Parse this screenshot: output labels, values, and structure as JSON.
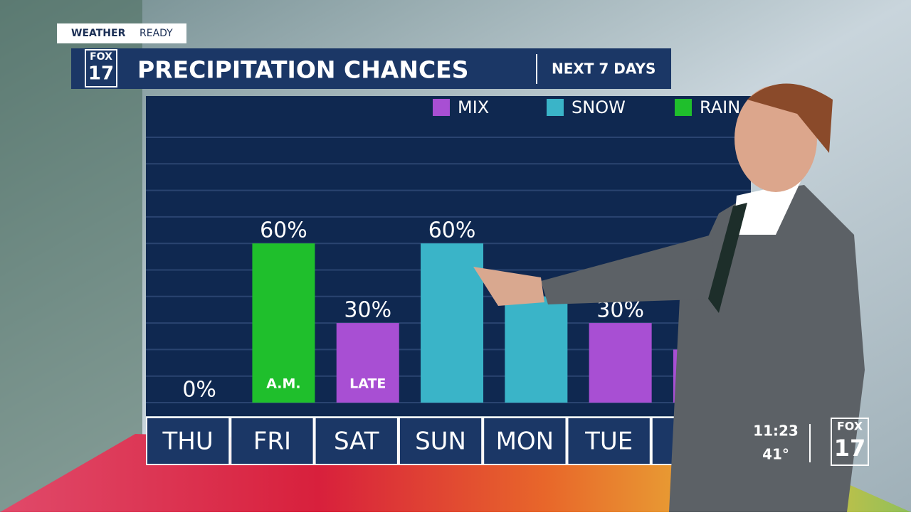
{
  "header": {
    "brand": "WEATHER",
    "status": "READY",
    "logo_top": "FOX",
    "logo_num": "17",
    "title": "PRECIPITATION CHANCES",
    "subtitle": "NEXT 7 DAYS",
    "time": "11:23",
    "temperature": "41°"
  },
  "chart_data": {
    "type": "bar",
    "categories": [
      "THU",
      "FRI",
      "SAT",
      "SUN",
      "MON",
      "TUE",
      null
    ],
    "series": [
      {
        "name": "MIX",
        "color": "#a84fd3",
        "values": [
          0,
          null,
          30,
          null,
          null,
          30,
          20
        ],
        "value_labels": [
          "0%",
          null,
          "30%",
          null,
          null,
          "30%",
          null
        ],
        "inner_labels": [
          null,
          null,
          "LATE",
          null,
          null,
          null,
          null
        ]
      },
      {
        "name": "SNOW",
        "color": "#3ab4c8",
        "values": [
          null,
          null,
          null,
          60,
          40,
          null,
          null
        ],
        "value_labels": [
          null,
          null,
          null,
          "60%",
          null,
          null,
          null
        ],
        "inner_labels": [
          null,
          null,
          null,
          null,
          null,
          null,
          null
        ]
      },
      {
        "name": "RAIN",
        "color": "#1fbf2c",
        "values": [
          null,
          60,
          null,
          null,
          null,
          null,
          null
        ],
        "value_labels": [
          null,
          "60%",
          null,
          null,
          null,
          null,
          null
        ],
        "inner_labels": [
          null,
          "A.M.",
          null,
          null,
          null,
          null,
          null
        ]
      }
    ],
    "ylim": [
      0,
      100
    ],
    "yticks": [
      0,
      10,
      20,
      30,
      40,
      50,
      60,
      70,
      80,
      90,
      100
    ],
    "grid": true
  }
}
